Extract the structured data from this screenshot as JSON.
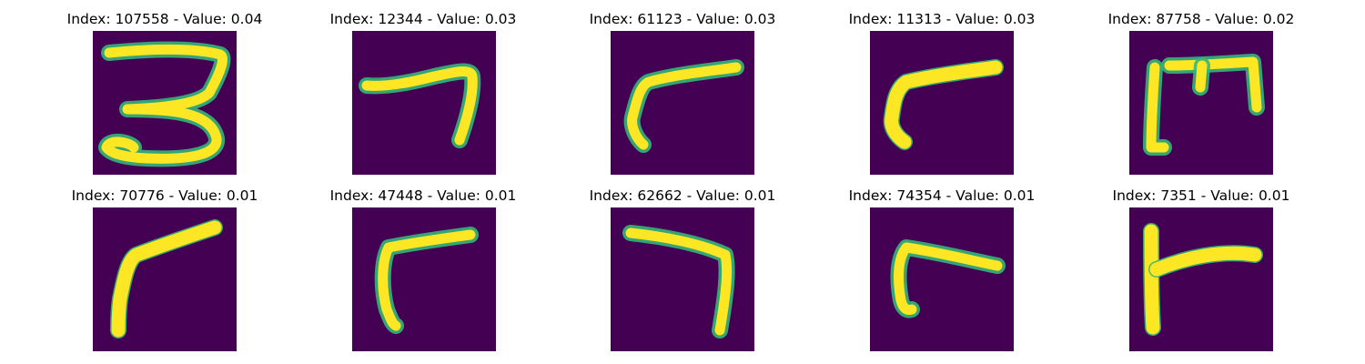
{
  "panel_background": "#440154",
  "stroke_color": "#fde725",
  "edge_color": "#35b779",
  "samples": [
    {
      "title": "Index: 107558 - Value: 0.04",
      "glyph": "three-icon"
    },
    {
      "title": "Index: 12344 - Value: 0.03",
      "glyph": "seven-icon"
    },
    {
      "title": "Index: 61123 - Value: 0.03",
      "glyph": "gamma-icon"
    },
    {
      "title": "Index: 11313 - Value: 0.03",
      "glyph": "gamma-icon"
    },
    {
      "title": "Index: 87758 - Value: 0.02",
      "glyph": "bracket-icon"
    },
    {
      "title": "Index: 70776 - Value: 0.01",
      "glyph": "gamma-icon"
    },
    {
      "title": "Index: 47448 - Value: 0.01",
      "glyph": "gamma-icon"
    },
    {
      "title": "Index: 62662 - Value: 0.01",
      "glyph": "seven-icon"
    },
    {
      "title": "Index: 74354 - Value: 0.01",
      "glyph": "gamma-icon"
    },
    {
      "title": "Index: 7351 - Value: 0.01",
      "glyph": "gamma-icon"
    }
  ]
}
